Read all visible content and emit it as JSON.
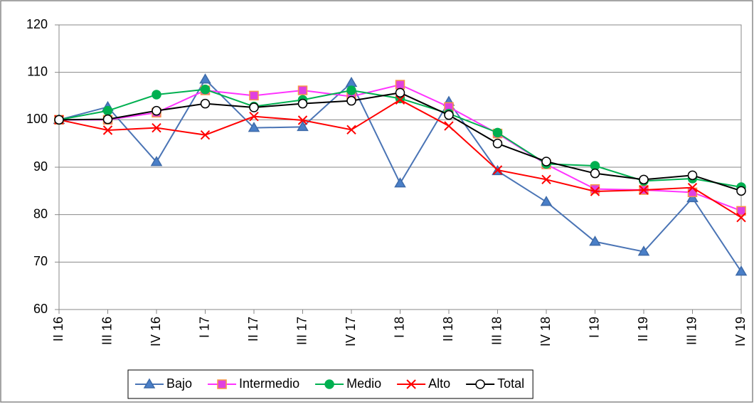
{
  "chart_data": {
    "type": "line",
    "categories": [
      "II 16",
      "III 16",
      "IV 16",
      "I 17",
      "II 17",
      "III 17",
      "IV 17",
      "I 18",
      "II 18",
      "III 18",
      "IV 18",
      "I 19",
      "II 19",
      "III 19",
      "IV 19"
    ],
    "series": [
      {
        "name": "Bajo",
        "color": "#4a74b5",
        "marker": "triangle",
        "marker_fill": "#4a7fc8",
        "marker_stroke": "#3d6aa8",
        "values": [
          100,
          102.7,
          91.1,
          108.5,
          98.3,
          98.5,
          107.8,
          86.6,
          103.8,
          89.2,
          82.7,
          74.3,
          72.2,
          83.5,
          68.0
        ]
      },
      {
        "name": "Intermedio",
        "color": "#ff33ff",
        "marker": "square",
        "marker_fill": "#e040e0",
        "marker_stroke": "#f79646",
        "values": [
          100,
          100,
          101.5,
          106.2,
          105.1,
          106.2,
          104.9,
          107.4,
          102.7,
          97.1,
          90.6,
          85.4,
          85.2,
          84.7,
          80.8
        ]
      },
      {
        "name": "Medio",
        "color": "#00b050",
        "marker": "circle",
        "marker_fill": "#00b050",
        "marker_stroke": "#00b050",
        "values": [
          100,
          101.9,
          105.3,
          106.4,
          102.8,
          104.2,
          106.2,
          104.5,
          101.3,
          97.3,
          90.7,
          90.3,
          87.1,
          87.6,
          85.8
        ]
      },
      {
        "name": "Alto",
        "color": "#ff0000",
        "marker": "x",
        "marker_fill": "none",
        "marker_stroke": "#ff0000",
        "values": [
          100,
          97.8,
          98.3,
          96.8,
          100.7,
          99.9,
          97.9,
          104.2,
          98.7,
          89.4,
          87.4,
          84.9,
          85.2,
          85.7,
          79.4
        ]
      },
      {
        "name": "Total",
        "color": "#000000",
        "marker": "circle",
        "marker_fill": "#ffffff",
        "marker_stroke": "#000000",
        "values": [
          100,
          100.1,
          101.9,
          103.4,
          102.6,
          103.4,
          104.0,
          105.7,
          101.0,
          95.0,
          91.2,
          88.7,
          87.4,
          88.3,
          85.0
        ]
      }
    ],
    "ylim": [
      60,
      120
    ],
    "yticks": [
      60,
      70,
      80,
      90,
      100,
      110,
      120
    ],
    "grid": true,
    "legend": "bottom"
  }
}
